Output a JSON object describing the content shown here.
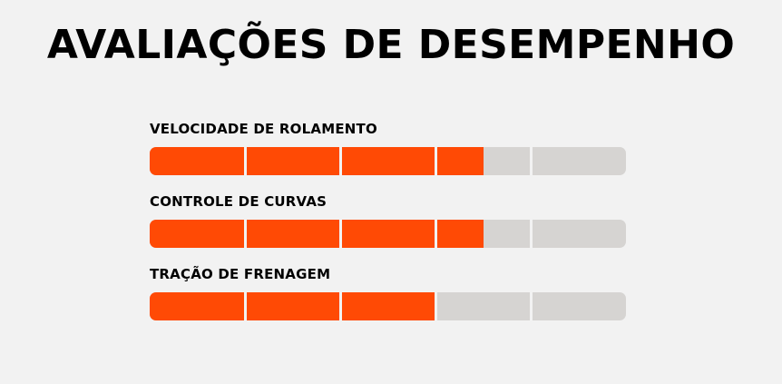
{
  "page": {
    "title": "AVALIAÇÕES DE DESEMPENHO"
  },
  "colors": {
    "fill": "#ff4a05",
    "track": "#d6d4d2",
    "background": "#f2f2f2",
    "text": "#000000"
  },
  "ratings": [
    {
      "label": "VELOCIDADE DE ROLAMENTO",
      "value": 3.5,
      "max": 5
    },
    {
      "label": "CONTROLE DE CURVAS",
      "value": 3.5,
      "max": 5
    },
    {
      "label": "TRAÇÃO DE FRENAGEM",
      "value": 3,
      "max": 5
    }
  ]
}
